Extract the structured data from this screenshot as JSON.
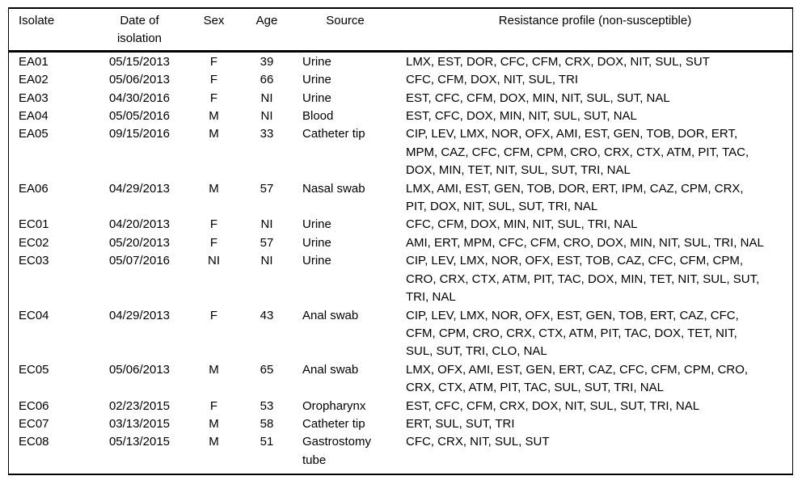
{
  "colors": {
    "text": "#000000",
    "background": "#ffffff",
    "border": "#000000"
  },
  "table": {
    "columns": [
      "Isolate",
      "Date of isolation",
      "Sex",
      "Age",
      "Source",
      "Resistance profile (non-susceptible)"
    ],
    "row_keys": [
      "isolate",
      "date",
      "sex",
      "age",
      "source",
      "profile"
    ],
    "rows": [
      {
        "isolate": "EA01",
        "date": "05/15/2013",
        "sex": "F",
        "age": "39",
        "source": "Urine",
        "profile": "LMX, EST, DOR, CFC, CFM, CRX, DOX, NIT, SUL, SUT"
      },
      {
        "isolate": "EA02",
        "date": "05/06/2013",
        "sex": "F",
        "age": "66",
        "source": "Urine",
        "profile": "CFC, CFM, DOX, NIT, SUL, TRI"
      },
      {
        "isolate": "EA03",
        "date": "04/30/2016",
        "sex": "F",
        "age": "NI",
        "source": "Urine",
        "profile": "EST, CFC, CFM, DOX, MIN, NIT, SUL, SUT, NAL"
      },
      {
        "isolate": "EA04",
        "date": "05/05/2016",
        "sex": "M",
        "age": "NI",
        "source": "Blood",
        "profile": "EST, CFC, DOX, MIN, NIT, SUL, SUT, NAL"
      },
      {
        "isolate": "EA05",
        "date": "09/15/2016",
        "sex": "M",
        "age": "33",
        "source": "Catheter tip",
        "profile": "CIP, LEV, LMX, NOR, OFX, AMI, EST, GEN, TOB, DOR, ERT, MPM, CAZ, CFC, CFM, CPM, CRO, CRX, CTX, ATM, PIT, TAC, DOX, MIN, TET, NIT, SUL, SUT, TRI, NAL"
      },
      {
        "isolate": "EA06",
        "date": "04/29/2013",
        "sex": "M",
        "age": "57",
        "source": "Nasal swab",
        "profile": "LMX, AMI, EST, GEN, TOB, DOR, ERT, IPM, CAZ, CPM, CRX, PIT, DOX, NIT, SUL, SUT, TRI, NAL"
      },
      {
        "isolate": "EC01",
        "date": "04/20/2013",
        "sex": "F",
        "age": "NI",
        "source": "Urine",
        "profile": "CFC, CFM, DOX, MIN, NIT, SUL, TRI, NAL"
      },
      {
        "isolate": "EC02",
        "date": "05/20/2013",
        "sex": "F",
        "age": "57",
        "source": "Urine",
        "profile": "AMI, ERT, MPM, CFC, CFM, CRO, DOX, MIN, NIT, SUL, TRI, NAL"
      },
      {
        "isolate": "EC03",
        "date": "05/07/2016",
        "sex": "NI",
        "age": "NI",
        "source": "Urine",
        "profile": "CIP, LEV, LMX, NOR, OFX, EST, TOB, CAZ, CFC, CFM, CPM, CRO, CRX, CTX, ATM, PIT, TAC, DOX, MIN, TET, NIT, SUL, SUT, TRI, NAL"
      },
      {
        "isolate": "EC04",
        "date": "04/29/2013",
        "sex": "F",
        "age": "43",
        "source": "Anal swab",
        "profile": "CIP, LEV, LMX, NOR, OFX, EST, GEN, TOB, ERT, CAZ, CFC, CFM, CPM, CRO, CRX, CTX, ATM, PIT, TAC, DOX, TET, NIT, SUL, SUT, TRI, CLO, NAL"
      },
      {
        "isolate": "EC05",
        "date": "05/06/2013",
        "sex": "M",
        "age": "65",
        "source": "Anal swab",
        "profile": "LMX, OFX, AMI, EST, GEN, ERT, CAZ, CFC, CFM, CPM, CRO, CRX, CTX, ATM, PIT, TAC, SUL, SUT, TRI, NAL"
      },
      {
        "isolate": "EC06",
        "date": "02/23/2015",
        "sex": "F",
        "age": "53",
        "source": "Oropharynx",
        "profile": "EST, CFC, CFM, CRX, DOX, NIT, SUL, SUT, TRI, NAL"
      },
      {
        "isolate": "EC07",
        "date": "03/13/2015",
        "sex": "M",
        "age": "58",
        "source": "Catheter tip",
        "profile": "ERT, SUL, SUT, TRI"
      },
      {
        "isolate": "EC08",
        "date": "05/13/2015",
        "sex": "M",
        "age": "51",
        "source": "Gastrostomy tube",
        "profile": "CFC, CRX, NIT, SUL, SUT"
      }
    ]
  }
}
